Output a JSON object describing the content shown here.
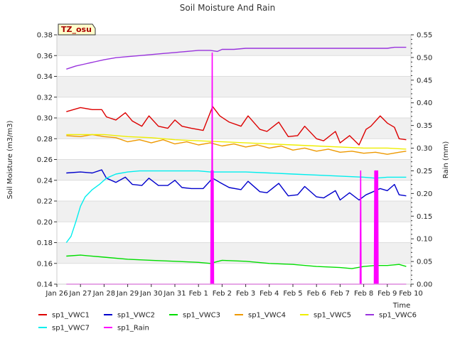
{
  "chart_data": {
    "type": "line",
    "title": "Soil Moisture And Rain",
    "xlabel": "Time",
    "ylabel": "Soil Moisture (m3/m3)",
    "y2label": "Rain (mm)",
    "badge": "TZ_osu",
    "x_ticks": [
      "Jan 26",
      "Jan 27",
      "Jan 28",
      "Jan 29",
      "Jan 30",
      "Jan 31",
      "Feb 1",
      "Feb 2",
      "Feb 3",
      "Feb 4",
      "Feb 5",
      "Feb 6",
      "Feb 7",
      "Feb 8",
      "Feb 9",
      "Feb 10"
    ],
    "xlim": [
      0,
      15
    ],
    "ylim": [
      0.14,
      0.38
    ],
    "y_ticks": [
      "0.14",
      "0.16",
      "0.18",
      "0.20",
      "0.22",
      "0.24",
      "0.26",
      "0.28",
      "0.30",
      "0.32",
      "0.34",
      "0.36",
      "0.38"
    ],
    "y2lim": [
      0,
      0.55
    ],
    "y2_ticks": [
      "0.00",
      "0.05",
      "0.10",
      "0.15",
      "0.20",
      "0.25",
      "0.30",
      "0.35",
      "0.40",
      "0.45",
      "0.50",
      "0.55"
    ],
    "grid": true,
    "legend_position": "bottom",
    "series": [
      {
        "name": "sp1_VWC1",
        "color": "#dd0000",
        "axis": "left",
        "x": [
          0.4,
          1.0,
          1.5,
          1.9,
          2.1,
          2.5,
          2.9,
          3.2,
          3.6,
          3.9,
          4.3,
          4.7,
          5.0,
          5.3,
          5.7,
          6.2,
          6.6,
          6.9,
          7.3,
          7.8,
          8.1,
          8.6,
          8.9,
          9.4,
          9.8,
          10.2,
          10.5,
          11.0,
          11.3,
          11.8,
          12.0,
          12.4,
          12.8,
          13.1,
          13.3,
          13.7,
          14.0,
          14.3,
          14.5,
          14.8
        ],
        "y": [
          0.306,
          0.31,
          0.308,
          0.308,
          0.301,
          0.298,
          0.305,
          0.297,
          0.292,
          0.302,
          0.292,
          0.29,
          0.298,
          0.292,
          0.29,
          0.288,
          0.311,
          0.302,
          0.296,
          0.292,
          0.302,
          0.289,
          0.287,
          0.296,
          0.282,
          0.283,
          0.292,
          0.28,
          0.278,
          0.287,
          0.276,
          0.283,
          0.274,
          0.289,
          0.292,
          0.302,
          0.295,
          0.291,
          0.28,
          0.279
        ]
      },
      {
        "name": "sp1_VWC2",
        "color": "#0000cc",
        "axis": "left",
        "x": [
          0.4,
          1.0,
          1.5,
          1.9,
          2.1,
          2.5,
          2.9,
          3.2,
          3.6,
          3.9,
          4.3,
          4.7,
          5.0,
          5.3,
          5.7,
          6.2,
          6.6,
          6.9,
          7.3,
          7.8,
          8.1,
          8.6,
          8.9,
          9.4,
          9.8,
          10.2,
          10.5,
          11.0,
          11.3,
          11.8,
          12.0,
          12.4,
          12.8,
          13.1,
          13.3,
          13.7,
          14.0,
          14.3,
          14.5,
          14.8
        ],
        "y": [
          0.247,
          0.248,
          0.247,
          0.25,
          0.242,
          0.238,
          0.243,
          0.236,
          0.235,
          0.242,
          0.235,
          0.235,
          0.24,
          0.233,
          0.232,
          0.232,
          0.242,
          0.238,
          0.233,
          0.231,
          0.239,
          0.229,
          0.228,
          0.237,
          0.225,
          0.226,
          0.234,
          0.224,
          0.223,
          0.23,
          0.221,
          0.228,
          0.221,
          0.226,
          0.228,
          0.232,
          0.23,
          0.236,
          0.226,
          0.225
        ]
      },
      {
        "name": "sp1_VWC3",
        "color": "#00dd00",
        "axis": "left",
        "x": [
          0.4,
          1.0,
          2.0,
          3.0,
          4.0,
          5.0,
          6.0,
          6.5,
          7.0,
          8.0,
          9.0,
          10.0,
          11.0,
          12.0,
          12.5,
          13.0,
          13.5,
          14.0,
          14.5,
          14.8
        ],
        "y": [
          0.167,
          0.168,
          0.166,
          0.164,
          0.163,
          0.162,
          0.161,
          0.16,
          0.163,
          0.162,
          0.16,
          0.159,
          0.157,
          0.156,
          0.155,
          0.157,
          0.158,
          0.158,
          0.159,
          0.157
        ]
      },
      {
        "name": "sp1_VWC4",
        "color": "#ee9900",
        "axis": "left",
        "x": [
          0.4,
          1.0,
          1.5,
          2.0,
          2.5,
          3.0,
          3.5,
          4.0,
          4.5,
          5.0,
          5.5,
          6.0,
          6.5,
          7.0,
          7.5,
          8.0,
          8.5,
          9.0,
          9.5,
          10.0,
          10.5,
          11.0,
          11.5,
          12.0,
          12.5,
          13.0,
          13.5,
          14.0,
          14.5,
          14.8
        ],
        "y": [
          0.283,
          0.282,
          0.284,
          0.282,
          0.281,
          0.277,
          0.279,
          0.276,
          0.279,
          0.275,
          0.277,
          0.274,
          0.276,
          0.273,
          0.275,
          0.272,
          0.274,
          0.271,
          0.273,
          0.269,
          0.271,
          0.268,
          0.27,
          0.267,
          0.268,
          0.266,
          0.267,
          0.265,
          0.267,
          0.268
        ]
      },
      {
        "name": "sp1_VWC5",
        "color": "#eeee00",
        "axis": "left",
        "x": [
          0.4,
          1.0,
          2.0,
          3.0,
          4.0,
          5.0,
          6.0,
          7.0,
          8.0,
          9.0,
          10.0,
          11.0,
          12.0,
          13.0,
          14.0,
          14.8
        ],
        "y": [
          0.284,
          0.284,
          0.284,
          0.282,
          0.281,
          0.279,
          0.278,
          0.277,
          0.276,
          0.275,
          0.274,
          0.273,
          0.272,
          0.271,
          0.271,
          0.27
        ]
      },
      {
        "name": "sp1_VWC6",
        "color": "#9933dd",
        "axis": "left",
        "x": [
          0.4,
          0.8,
          1.2,
          1.6,
          2.0,
          2.5,
          3.0,
          3.5,
          4.0,
          4.5,
          5.0,
          5.5,
          6.0,
          6.5,
          6.8,
          7.0,
          7.5,
          8.0,
          9.0,
          10.0,
          11.0,
          12.0,
          13.0,
          14.0,
          14.3,
          14.8
        ],
        "y": [
          0.347,
          0.35,
          0.352,
          0.354,
          0.356,
          0.358,
          0.359,
          0.36,
          0.361,
          0.362,
          0.363,
          0.364,
          0.365,
          0.365,
          0.364,
          0.366,
          0.366,
          0.367,
          0.367,
          0.367,
          0.367,
          0.367,
          0.367,
          0.367,
          0.368,
          0.368
        ]
      },
      {
        "name": "sp1_VWC7",
        "color": "#00eeee",
        "axis": "left",
        "x": [
          0.4,
          0.6,
          0.8,
          1.0,
          1.2,
          1.5,
          1.8,
          2.1,
          2.5,
          3.0,
          3.5,
          4.0,
          5.0,
          6.0,
          6.5,
          7.0,
          8.0,
          9.0,
          10.0,
          11.0,
          12.0,
          13.0,
          13.5,
          14.0,
          14.8
        ],
        "y": [
          0.18,
          0.186,
          0.2,
          0.215,
          0.224,
          0.231,
          0.236,
          0.242,
          0.246,
          0.248,
          0.249,
          0.249,
          0.249,
          0.249,
          0.248,
          0.248,
          0.248,
          0.247,
          0.246,
          0.245,
          0.244,
          0.243,
          0.242,
          0.243,
          0.243
        ]
      },
      {
        "name": "sp1_Rain",
        "color": "#ff00ff",
        "axis": "right",
        "x": [
          0.4,
          6.52,
          6.54,
          6.56,
          6.58,
          6.6,
          6.62,
          6.64,
          6.66,
          6.68,
          12.85,
          12.87,
          12.89,
          13.45,
          13.47,
          13.49,
          13.51,
          13.53,
          13.55,
          13.57,
          13.59,
          13.61,
          14.8
        ],
        "y": [
          0.0,
          0.0,
          0.25,
          0.0,
          0.51,
          0.0,
          0.25,
          0.0,
          0.0,
          0.0,
          0.0,
          0.25,
          0.0,
          0.0,
          0.25,
          0.0,
          0.25,
          0.0,
          0.25,
          0.0,
          0.25,
          0.0,
          0.0
        ]
      }
    ]
  }
}
